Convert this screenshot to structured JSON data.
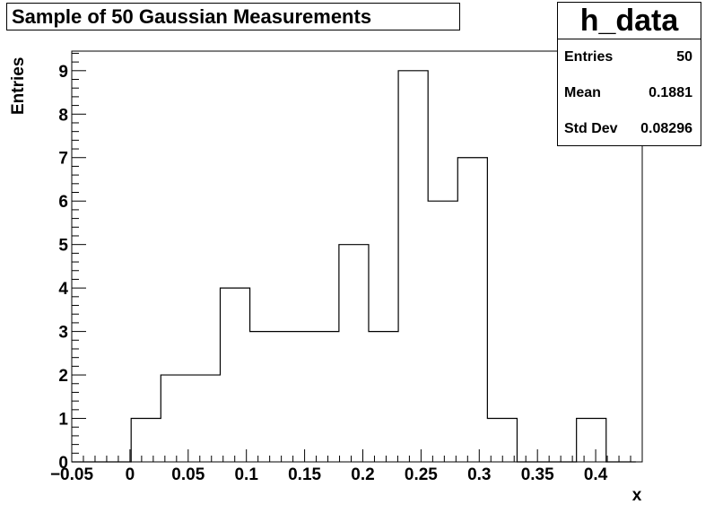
{
  "chart_data": {
    "type": "histogram",
    "title": "Sample of 50 Gaussian Measurements",
    "xlabel": "x",
    "ylabel": "Entries",
    "xlim": [
      -0.05,
      0.44
    ],
    "ylim": [
      0,
      9.45
    ],
    "x_ticks": [
      "−0.05",
      "0",
      "0.05",
      "0.1",
      "0.15",
      "0.2",
      "0.25",
      "0.3",
      "0.35",
      "0.4"
    ],
    "x_tick_values": [
      -0.05,
      0,
      0.05,
      0.1,
      0.15,
      0.2,
      0.25,
      0.3,
      0.35,
      0.4
    ],
    "y_ticks": [
      "0",
      "1",
      "2",
      "3",
      "4",
      "5",
      "6",
      "7",
      "8",
      "9"
    ],
    "y_tick_values": [
      0,
      1,
      2,
      3,
      4,
      5,
      6,
      7,
      8,
      9
    ],
    "bin_edges": [
      -0.05,
      -0.0245,
      0.001,
      0.0265,
      0.052,
      0.0775,
      0.103,
      0.1285,
      0.154,
      0.1795,
      0.205,
      0.2305,
      0.256,
      0.2815,
      0.307,
      0.3325,
      0.358,
      0.3835,
      0.409,
      0.4345
    ],
    "bin_counts": [
      0,
      0,
      1,
      2,
      2,
      4,
      3,
      3,
      3,
      5,
      3,
      9,
      6,
      7,
      1,
      0,
      0,
      1,
      0
    ],
    "grid": false,
    "stats": {
      "name": "h_data",
      "entries_label": "Entries",
      "entries": "50",
      "mean_label": "Mean",
      "mean": "0.1881",
      "std_label": "Std Dev",
      "std": "0.08296"
    }
  }
}
